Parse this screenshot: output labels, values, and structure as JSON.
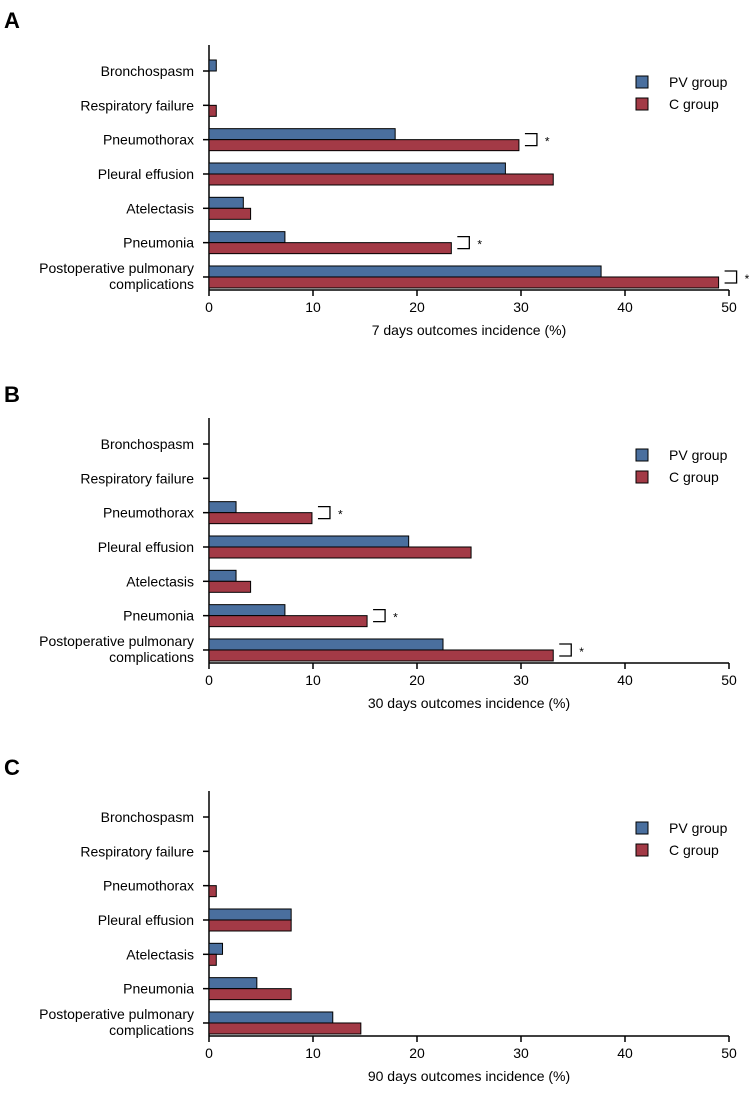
{
  "colors": {
    "pv": "#4a6f9e",
    "c": "#a33a46",
    "axis": "#000000"
  },
  "legend": {
    "position": "top-right"
  },
  "chart_data": [
    {
      "panel": "A",
      "type": "bar",
      "orientation": "horizontal",
      "categories": [
        "Bronchospasm",
        "Respiratory failure",
        "Pneumothorax",
        "Pleural effusion",
        "Atelectasis",
        "Pneumonia",
        "Postoperative pulmonary complications"
      ],
      "series": [
        {
          "name": "PV group",
          "values": [
            0.7,
            0,
            17.9,
            28.5,
            3.3,
            7.3,
            37.7
          ]
        },
        {
          "name": "C group",
          "values": [
            0,
            0.7,
            29.8,
            33.1,
            4.0,
            23.3,
            49.0
          ]
        }
      ],
      "significant": [
        false,
        false,
        true,
        false,
        false,
        true,
        true
      ],
      "xlabel": "7 days outcomes incidence (%)",
      "xlim": [
        0,
        50
      ],
      "xticks": [
        0,
        10,
        20,
        30,
        40,
        50
      ]
    },
    {
      "panel": "B",
      "type": "bar",
      "orientation": "horizontal",
      "categories": [
        "Bronchospasm",
        "Respiratory failure",
        "Pneumothorax",
        "Pleural effusion",
        "Atelectasis",
        "Pneumonia",
        "Postoperative pulmonary complications"
      ],
      "series": [
        {
          "name": "PV group",
          "values": [
            0,
            0,
            2.6,
            19.2,
            2.6,
            7.3,
            22.5
          ]
        },
        {
          "name": "C group",
          "values": [
            0,
            0,
            9.9,
            25.2,
            4.0,
            15.2,
            33.1
          ]
        }
      ],
      "significant": [
        false,
        false,
        true,
        false,
        false,
        true,
        true
      ],
      "xlabel": "30 days outcomes incidence (%)",
      "xlim": [
        0,
        50
      ],
      "xticks": [
        0,
        10,
        20,
        30,
        40,
        50
      ]
    },
    {
      "panel": "C",
      "type": "bar",
      "orientation": "horizontal",
      "categories": [
        "Bronchospasm",
        "Respiratory failure",
        "Pneumothorax",
        "Pleural effusion",
        "Atelectasis",
        "Pneumonia",
        "Postoperative pulmonary complications"
      ],
      "series": [
        {
          "name": "PV group",
          "values": [
            0,
            0,
            0,
            7.9,
            1.3,
            4.6,
            11.9
          ]
        },
        {
          "name": "C group",
          "values": [
            0,
            0,
            0.7,
            7.9,
            0.7,
            7.9,
            14.6
          ]
        }
      ],
      "significant": [
        false,
        false,
        false,
        false,
        false,
        false,
        false
      ],
      "xlabel": "90 days outcomes incidence (%)",
      "xlim": [
        0,
        50
      ],
      "xticks": [
        0,
        10,
        20,
        30,
        40,
        50
      ]
    }
  ]
}
